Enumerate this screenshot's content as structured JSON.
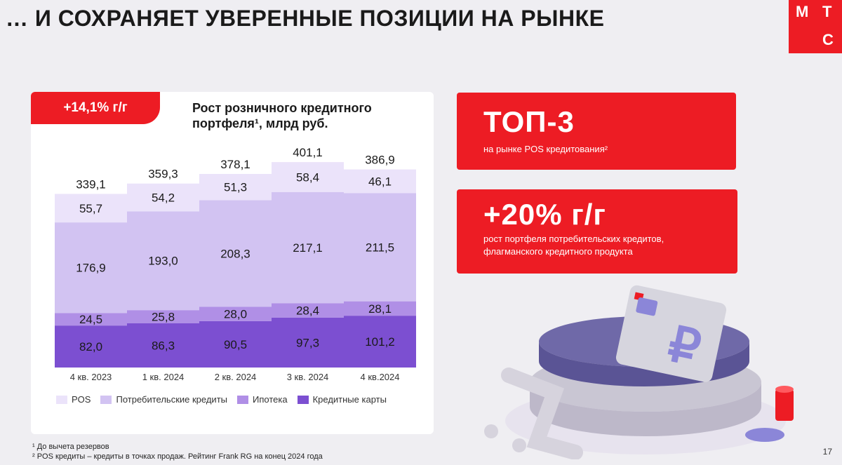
{
  "header": {
    "title": "… И СОХРАНЯЕТ УВЕРЕННЫЕ ПОЗИЦИИ НА РЫНКЕ",
    "logo": [
      "М",
      "Т",
      "С"
    ]
  },
  "growth_badge": "+14,1% г/г",
  "chart_title_line1": "Рост розничного кредитного",
  "chart_title_line2": "портфеля¹, млрд руб.",
  "chart_data": {
    "type": "bar",
    "stacked": true,
    "title": "Рост розничного кредитного портфеля¹, млрд руб.",
    "categories": [
      "4 кв. 2023",
      "1 кв. 2024",
      "2 кв. 2024",
      "3 кв. 2024",
      "4 кв.2024"
    ],
    "totals": [
      "339,1",
      "359,3",
      "378,1",
      "401,1",
      "386,9"
    ],
    "series": [
      {
        "name": "Кредитные карты",
        "values": [
          82.0,
          86.3,
          90.5,
          97.3,
          101.2
        ],
        "labels": [
          "82,0",
          "86,3",
          "90,5",
          "97,3",
          "101,2"
        ],
        "color": "#7c4fd1"
      },
      {
        "name": "Ипотека",
        "values": [
          24.5,
          25.8,
          28.0,
          28.4,
          28.1
        ],
        "labels": [
          "24,5",
          "25,8",
          "28,0",
          "28,4",
          "28,1"
        ],
        "color": "#b08fe6"
      },
      {
        "name": "Потребительские кредиты",
        "values": [
          176.9,
          193.0,
          208.3,
          217.1,
          211.5
        ],
        "labels": [
          "176,9",
          "193,0",
          "208,3",
          "217,1",
          "211,5"
        ],
        "color": "#d2c3f2"
      },
      {
        "name": "POS",
        "values": [
          55.7,
          54.2,
          51.3,
          58.4,
          46.1
        ],
        "labels": [
          "55,7",
          "54,2",
          "51,3",
          "58,4",
          "46,1"
        ],
        "color": "#ebe3fa"
      }
    ],
    "legend": [
      "POS",
      "Потребительские кредиты",
      "Ипотека",
      "Кредитные карты"
    ],
    "legend_position": "bottom",
    "grid": false
  },
  "card_top3": {
    "headline": "ТОП-3",
    "caption": "на рынке POS кредитования²"
  },
  "card_growth": {
    "headline": "+20% г/г",
    "caption": "рост портфеля потребительских кредитов, флагманского кредитного продукта"
  },
  "footnotes": [
    "¹ До вычета резервов",
    "² POS кредиты – кредиты в точках продаж. Рейтинг Frank RG на конец 2024 года"
  ],
  "page_number": "17",
  "colors": {
    "brand_red": "#ed1c24",
    "background": "#efeef2"
  }
}
